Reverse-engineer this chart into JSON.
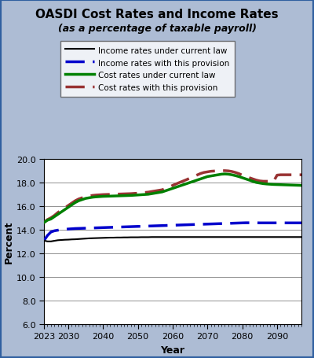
{
  "title": "OASDI Cost Rates and Income Rates",
  "subtitle": "(as a percentage of taxable payroll)",
  "xlabel": "Year",
  "ylabel": "Percent",
  "ylim": [
    6.0,
    20.0
  ],
  "xlim": [
    2023,
    2097
  ],
  "yticks": [
    6.0,
    8.0,
    10.0,
    12.0,
    14.0,
    16.0,
    18.0,
    20.0
  ],
  "xticks": [
    2023,
    2030,
    2040,
    2050,
    2060,
    2070,
    2080,
    2090
  ],
  "bg_outer": "#adbcd4",
  "bg_plot": "#ffffff",
  "border_color": "#3060a0",
  "years": [
    2023,
    2024,
    2025,
    2026,
    2027,
    2028,
    2029,
    2030,
    2031,
    2032,
    2033,
    2034,
    2035,
    2036,
    2037,
    2038,
    2039,
    2040,
    2041,
    2042,
    2043,
    2044,
    2045,
    2046,
    2047,
    2048,
    2049,
    2050,
    2051,
    2052,
    2053,
    2054,
    2055,
    2056,
    2057,
    2058,
    2059,
    2060,
    2061,
    2062,
    2063,
    2064,
    2065,
    2066,
    2067,
    2068,
    2069,
    2070,
    2071,
    2072,
    2073,
    2074,
    2075,
    2076,
    2077,
    2078,
    2079,
    2080,
    2081,
    2082,
    2083,
    2084,
    2085,
    2086,
    2087,
    2088,
    2089,
    2090,
    2091,
    2092,
    2093,
    2094,
    2095,
    2096,
    2097
  ],
  "income_current": [
    13.07,
    13.0,
    13.0,
    13.05,
    13.1,
    13.12,
    13.14,
    13.15,
    13.17,
    13.18,
    13.2,
    13.22,
    13.24,
    13.26,
    13.27,
    13.28,
    13.29,
    13.3,
    13.31,
    13.32,
    13.32,
    13.33,
    13.33,
    13.34,
    13.34,
    13.35,
    13.35,
    13.35,
    13.36,
    13.36,
    13.36,
    13.37,
    13.37,
    13.37,
    13.37,
    13.37,
    13.37,
    13.37,
    13.37,
    13.37,
    13.37,
    13.37,
    13.37,
    13.37,
    13.37,
    13.37,
    13.37,
    13.37,
    13.37,
    13.37,
    13.37,
    13.37,
    13.37,
    13.37,
    13.37,
    13.37,
    13.37,
    13.37,
    13.37,
    13.37,
    13.37,
    13.37,
    13.37,
    13.37,
    13.37,
    13.37,
    13.37,
    13.37,
    13.37,
    13.37,
    13.37,
    13.37,
    13.37,
    13.37,
    13.37
  ],
  "income_provision": [
    13.07,
    13.5,
    13.8,
    13.9,
    13.95,
    14.0,
    14.02,
    14.05,
    14.07,
    14.09,
    14.1,
    14.11,
    14.12,
    14.13,
    14.14,
    14.15,
    14.16,
    14.17,
    14.18,
    14.19,
    14.2,
    14.21,
    14.22,
    14.23,
    14.24,
    14.25,
    14.26,
    14.27,
    14.28,
    14.29,
    14.3,
    14.31,
    14.32,
    14.33,
    14.34,
    14.35,
    14.36,
    14.37,
    14.38,
    14.39,
    14.4,
    14.41,
    14.42,
    14.43,
    14.44,
    14.45,
    14.46,
    14.47,
    14.48,
    14.49,
    14.5,
    14.51,
    14.52,
    14.53,
    14.54,
    14.55,
    14.56,
    14.57,
    14.58,
    14.58,
    14.58,
    14.58,
    14.57,
    14.57,
    14.57,
    14.57,
    14.57,
    14.57,
    14.57,
    14.57,
    14.57,
    14.57,
    14.57,
    14.57,
    14.57
  ],
  "cost_current": [
    14.6,
    14.8,
    14.9,
    15.1,
    15.3,
    15.5,
    15.7,
    15.9,
    16.1,
    16.3,
    16.45,
    16.55,
    16.65,
    16.7,
    16.75,
    16.78,
    16.8,
    16.82,
    16.83,
    16.84,
    16.85,
    16.86,
    16.87,
    16.88,
    16.89,
    16.9,
    16.92,
    16.94,
    16.96,
    16.98,
    17.0,
    17.05,
    17.1,
    17.15,
    17.2,
    17.3,
    17.4,
    17.5,
    17.6,
    17.7,
    17.8,
    17.9,
    18.0,
    18.1,
    18.2,
    18.3,
    18.4,
    18.5,
    18.55,
    18.6,
    18.65,
    18.7,
    18.72,
    18.7,
    18.65,
    18.58,
    18.5,
    18.4,
    18.3,
    18.2,
    18.1,
    18.0,
    17.95,
    17.9,
    17.87,
    17.85,
    17.83,
    17.82,
    17.81,
    17.8,
    17.79,
    17.78,
    17.77,
    17.76,
    17.75
  ],
  "cost_provision": [
    14.6,
    14.85,
    15.0,
    15.2,
    15.45,
    15.65,
    15.85,
    16.05,
    16.25,
    16.45,
    16.6,
    16.7,
    16.8,
    16.85,
    16.9,
    16.93,
    16.95,
    16.97,
    16.98,
    16.99,
    17.0,
    17.01,
    17.02,
    17.03,
    17.04,
    17.05,
    17.07,
    17.09,
    17.12,
    17.15,
    17.18,
    17.23,
    17.28,
    17.33,
    17.38,
    17.5,
    17.62,
    17.75,
    17.88,
    18.0,
    18.12,
    18.24,
    18.37,
    18.5,
    18.63,
    18.76,
    18.85,
    18.9,
    18.95,
    18.97,
    18.98,
    19.0,
    19.0,
    18.98,
    18.93,
    18.85,
    18.75,
    18.62,
    18.5,
    18.4,
    18.3,
    18.2,
    18.13,
    18.1,
    18.1,
    18.1,
    18.1,
    18.62,
    18.65,
    18.65,
    18.65,
    18.65,
    18.65,
    18.65,
    18.65
  ],
  "legend_entries": [
    {
      "label": "Income rates under current law",
      "color": "#000000",
      "linestyle": "solid",
      "lw": 1.5
    },
    {
      "label": "Income rates with this provision",
      "color": "#0000cc",
      "linestyle": "dashed",
      "lw": 2.5
    },
    {
      "label": "Cost rates under current law",
      "color": "#008000",
      "linestyle": "solid",
      "lw": 2.5
    },
    {
      "label": "Cost rates with this provision",
      "color": "#993333",
      "linestyle": "dashed",
      "lw": 2.5
    }
  ],
  "title_fontsize": 11,
  "subtitle_fontsize": 9,
  "axis_label_fontsize": 9,
  "tick_fontsize": 8
}
